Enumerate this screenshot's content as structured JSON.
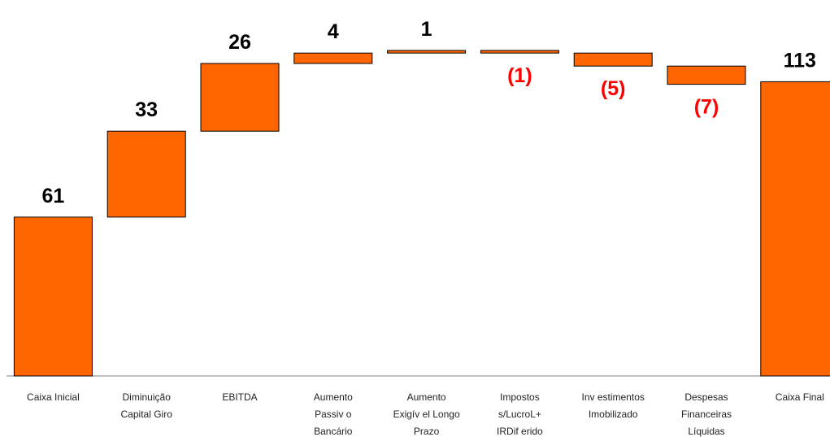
{
  "chart_data": {
    "type": "waterfall",
    "title": "",
    "xlabel": "",
    "ylabel": "",
    "ylim": [
      0,
      130
    ],
    "grid": false,
    "categories": [
      [
        "Caixa Inicial"
      ],
      [
        "Diminuição",
        "Capital Giro"
      ],
      [
        "EBITDA"
      ],
      [
        "Aumento",
        "Passiv o",
        "Bancário"
      ],
      [
        "Aumento",
        "Exigív el Longo",
        "Prazo"
      ],
      [
        "Impostos",
        "s/LucroL+",
        "IRDif erido"
      ],
      [
        "Inv estimentos",
        "Imobilizado"
      ],
      [
        "Despesas",
        "Financeiras",
        "Líquidas"
      ],
      [
        "Caixa Final"
      ]
    ],
    "values": [
      61,
      33,
      26,
      4,
      1,
      -1,
      -5,
      -7,
      113
    ],
    "labels": [
      "61",
      "33",
      "26",
      "4",
      "1",
      "(1)",
      "(5)",
      "(7)",
      "113"
    ],
    "kinds": [
      "total",
      "delta",
      "delta",
      "delta",
      "delta",
      "delta",
      "delta",
      "delta",
      "total"
    ],
    "colors": {
      "bar": "#ff6600",
      "bar_edge": "#000000",
      "positive_label": "#000000",
      "negative_label": "#ff0000",
      "axis": "#808080"
    }
  }
}
